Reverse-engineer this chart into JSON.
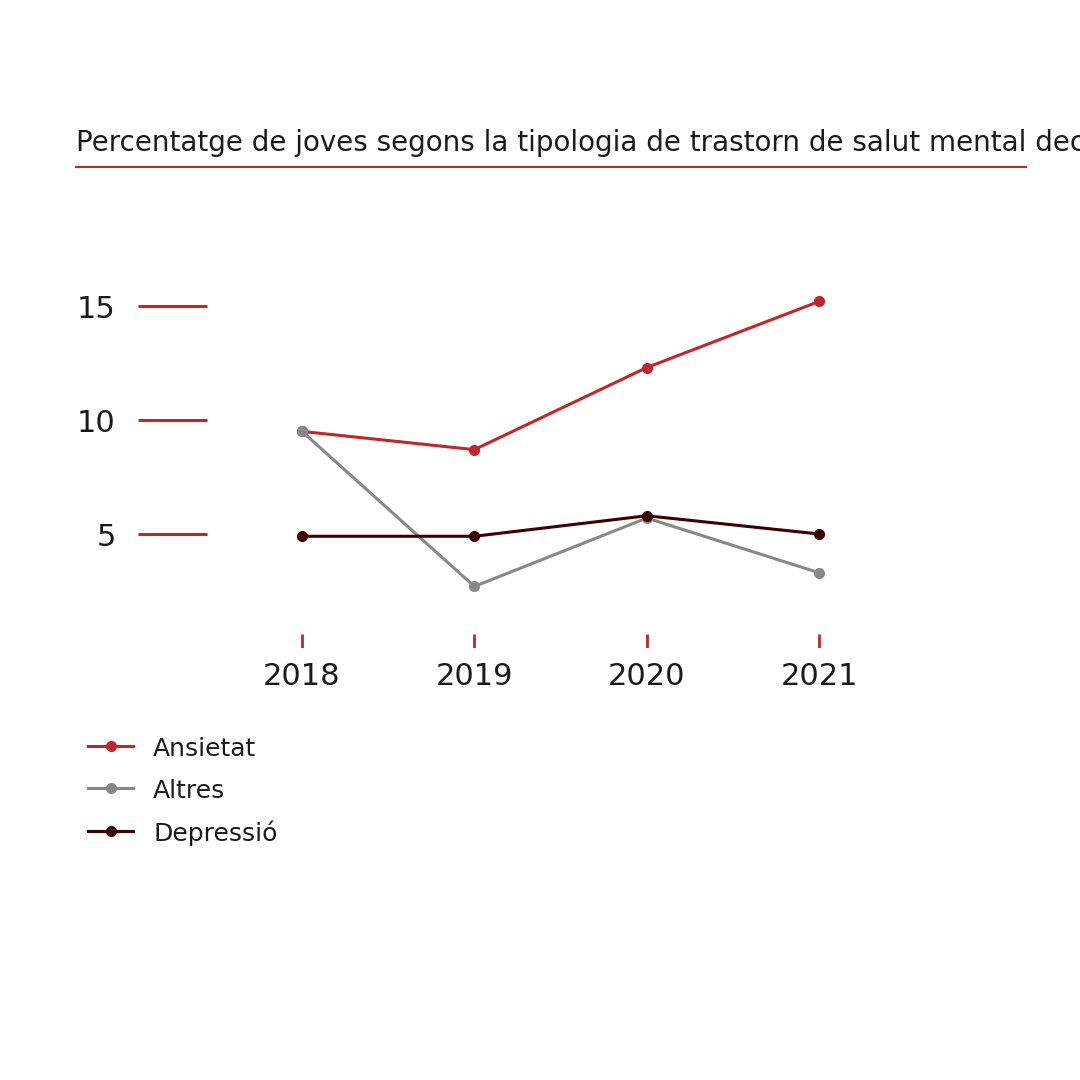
{
  "title": "Percentatge de joves segons la tipologia de trastorn de salut mental declarat",
  "years": [
    2018,
    2019,
    2020,
    2021
  ],
  "series": [
    {
      "label": "Ansietat",
      "values": [
        9.5,
        8.7,
        12.3,
        15.2
      ],
      "color": "#c0272d",
      "marker_color": "#c0272d",
      "linewidth": 2.2,
      "markersize": 7
    },
    {
      "label": "Altres",
      "values": [
        9.5,
        2.7,
        5.7,
        3.3
      ],
      "color": "#888888",
      "marker_color": "#888888",
      "linewidth": 2.2,
      "markersize": 7
    },
    {
      "label": "Depressió",
      "values": [
        4.9,
        4.9,
        5.8,
        5.0
      ],
      "color": "#3d0000",
      "marker_color": "#3d0000",
      "linewidth": 2.2,
      "markersize": 7
    }
  ],
  "yticks": [
    5,
    10,
    15
  ],
  "ylim": [
    0,
    18
  ],
  "xlim": [
    2017.0,
    2022.2
  ],
  "title_fontsize": 20,
  "tick_fontsize": 22,
  "legend_fontsize": 18,
  "bg_color": "#ffffff",
  "title_color": "#1a1a1a",
  "tick_color": "#1a1a1a",
  "title_line_color": "#c0272d",
  "ytick_line_color": "#c0272d",
  "xtick_line_color": "#c0272d",
  "ytick_dash_width": 0.35,
  "xtick_height": 0.6
}
